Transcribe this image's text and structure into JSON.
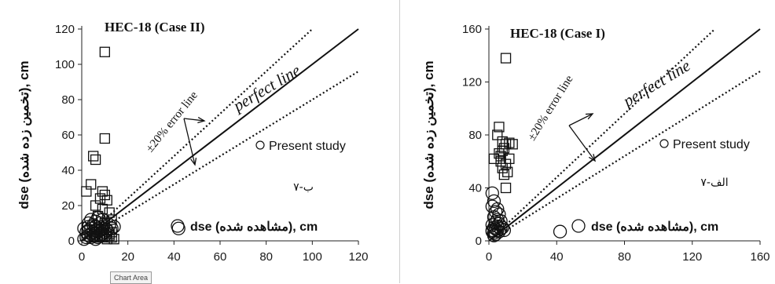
{
  "tooltip": "Chart Area",
  "chart_data": [
    {
      "type": "scatter",
      "title": "HEC-18 (Case II)",
      "ylabel": "dse (تخمین زده شده), cm",
      "xlabel": "dse (مشاهده شده), cm",
      "fig_label": "۷-ب",
      "xlim": [
        0,
        120
      ],
      "ylim": [
        0,
        120
      ],
      "xticks": [
        0,
        20,
        40,
        60,
        80,
        100,
        120
      ],
      "yticks": [
        0,
        20,
        40,
        60,
        80,
        100,
        120
      ],
      "annotations": {
        "perfect": "perfect line",
        "error": "±20% error line"
      },
      "series": [
        {
          "name": "Present study",
          "marker": "circle",
          "points": [
            [
              1,
              1
            ],
            [
              2,
              2
            ],
            [
              2,
              5
            ],
            [
              3,
              3
            ],
            [
              3,
              6
            ],
            [
              3,
              8
            ],
            [
              4,
              2
            ],
            [
              4,
              4
            ],
            [
              4,
              7
            ],
            [
              5,
              3
            ],
            [
              5,
              5
            ],
            [
              5,
              9
            ],
            [
              6,
              1
            ],
            [
              6,
              4
            ],
            [
              6,
              6
            ],
            [
              6,
              8
            ],
            [
              7,
              2
            ],
            [
              7,
              5
            ],
            [
              7,
              7
            ],
            [
              8,
              3
            ],
            [
              8,
              6
            ],
            [
              8,
              10
            ],
            [
              9,
              4
            ],
            [
              9,
              7
            ],
            [
              10,
              3
            ],
            [
              10,
              5
            ],
            [
              11,
              6
            ],
            [
              12,
              9
            ],
            [
              13,
              7
            ],
            [
              14,
              8
            ],
            [
              3,
              10
            ],
            [
              4,
              12
            ],
            [
              6,
              11
            ],
            [
              7,
              13
            ],
            [
              9,
              12
            ],
            [
              42,
              7
            ],
            [
              1,
              7
            ]
          ]
        },
        {
          "name": "",
          "marker": "square",
          "points": [
            [
              10,
              107
            ],
            [
              10,
              58
            ],
            [
              5,
              48
            ],
            [
              6,
              46
            ],
            [
              4,
              32
            ],
            [
              2,
              28
            ],
            [
              9,
              28
            ],
            [
              10,
              26
            ],
            [
              8,
              24
            ],
            [
              11,
              23
            ],
            [
              6,
              20
            ],
            [
              9,
              18
            ],
            [
              12,
              16
            ],
            [
              7,
              14
            ],
            [
              13,
              12
            ],
            [
              10,
              10
            ],
            [
              11,
              6
            ],
            [
              12,
              4
            ],
            [
              13,
              2
            ],
            [
              14,
              1
            ],
            [
              8,
              3
            ],
            [
              9,
              2
            ],
            [
              6,
              2
            ],
            [
              11,
              1
            ],
            [
              12,
              3
            ],
            [
              13,
              5
            ]
          ]
        }
      ]
    },
    {
      "type": "scatter",
      "title": "HEC-18 (Case I)",
      "ylabel": "dse (تخمین زده شده), cm",
      "xlabel": "dse (مشاهده شده), cm",
      "fig_label": "۷-الف",
      "xlim": [
        0,
        160
      ],
      "ylim": [
        0,
        160
      ],
      "xticks": [
        0,
        40,
        80,
        120,
        160
      ],
      "yticks": [
        0,
        40,
        80,
        120,
        160
      ],
      "annotations": {
        "perfect": "perfect line",
        "error": "±20% error line"
      },
      "series": [
        {
          "name": "Present study",
          "marker": "circle",
          "points": [
            [
              2,
              36
            ],
            [
              3,
              30
            ],
            [
              2,
              26
            ],
            [
              4,
              22
            ],
            [
              3,
              18
            ],
            [
              5,
              16
            ],
            [
              4,
              14
            ],
            [
              2,
              12
            ],
            [
              3,
              10
            ],
            [
              4,
              9
            ],
            [
              5,
              8
            ],
            [
              6,
              7
            ],
            [
              2,
              8
            ],
            [
              3,
              6
            ],
            [
              4,
              5
            ],
            [
              5,
              11
            ],
            [
              6,
              13
            ],
            [
              7,
              9
            ],
            [
              8,
              10
            ],
            [
              9,
              8
            ],
            [
              3,
              4
            ],
            [
              2,
              7
            ],
            [
              42,
              7
            ],
            [
              6,
              20
            ],
            [
              7,
              15
            ],
            [
              5,
              24
            ]
          ]
        },
        {
          "name": "",
          "marker": "square",
          "points": [
            [
              10,
              138
            ],
            [
              6,
              86
            ],
            [
              5,
              80
            ],
            [
              8,
              75
            ],
            [
              12,
              74
            ],
            [
              10,
              73
            ],
            [
              14,
              73
            ],
            [
              9,
              70
            ],
            [
              3,
              62
            ],
            [
              7,
              60
            ],
            [
              10,
              58
            ],
            [
              8,
              55
            ],
            [
              11,
              52
            ],
            [
              9,
              50
            ],
            [
              10,
              40
            ],
            [
              7,
              64
            ],
            [
              6,
              66
            ],
            [
              12,
              62
            ],
            [
              8,
              68
            ]
          ]
        }
      ]
    }
  ]
}
